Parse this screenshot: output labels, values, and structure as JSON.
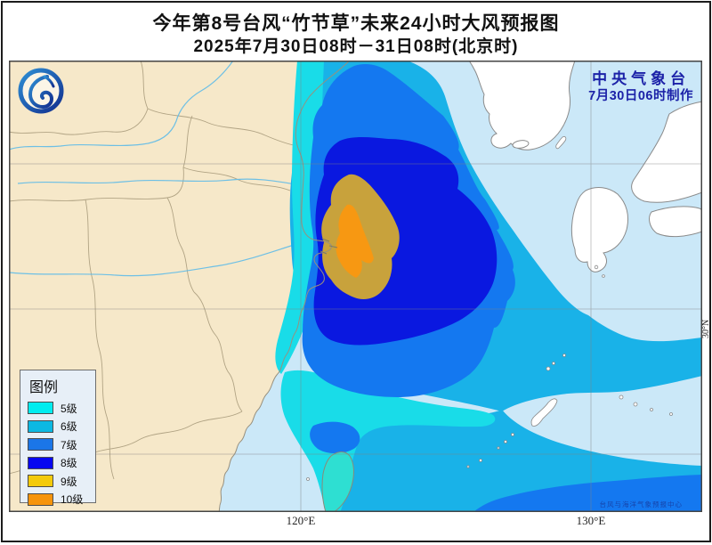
{
  "header": {
    "title": "今年第8号台风“竹节草”未来24小时大风预报图",
    "subtitle": "2025年7月30日08时－31日08时(北京时)"
  },
  "credit": {
    "line1": "中央气象台",
    "line2": "7月30日06时制作"
  },
  "legend": {
    "title": "图例",
    "items": [
      {
        "label": "5级",
        "color": "#00EDF0"
      },
      {
        "label": "6级",
        "color": "#0CB8E2"
      },
      {
        "label": "7级",
        "color": "#1B76E8"
      },
      {
        "label": "8级",
        "color": "#0707F0"
      },
      {
        "label": "9级",
        "color": "#F3CA0C"
      },
      {
        "label": "10级",
        "color": "#F6940B"
      }
    ]
  },
  "axes": {
    "lon": [
      "120°E",
      "130°E"
    ],
    "lat": "30°N"
  },
  "watermark": "台风与海洋气象预报中心",
  "map": {
    "colors": {
      "sea": "#CBE8F8",
      "land": "#F6E8C9",
      "foreign_land": "#FFFFFF",
      "lv5": "#19DCE8",
      "lv5_taiwan": "#2EDFD2",
      "lv6": "#19B2E8",
      "lv7": "#1478F0",
      "lv8": "#0A18E0",
      "lv9": "#C8A23C",
      "lv10": "#F79812",
      "coast_line": "#98907E",
      "grid_line": "#808080"
    }
  }
}
